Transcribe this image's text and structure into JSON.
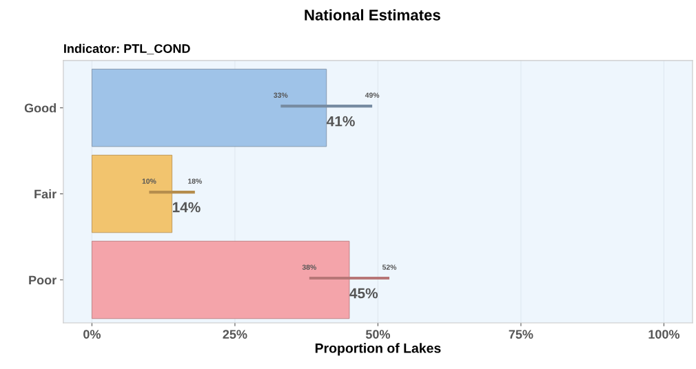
{
  "chart_data": {
    "type": "bar",
    "orientation": "horizontal",
    "title": "National Estimates",
    "subtitle": "Indicator: PTL_COND",
    "xlabel": "Proportion of Lakes",
    "categories": [
      "Good",
      "Fair",
      "Poor"
    ],
    "values": [
      41,
      14,
      45
    ],
    "colors": [
      "#9fc3e8",
      "#f2c46e",
      "#f4a4aa"
    ],
    "errors": [
      [
        33,
        49
      ],
      [
        10,
        18
      ],
      [
        38,
        52
      ]
    ],
    "value_labels": [
      "41%",
      "14%",
      "45%"
    ],
    "annotations": [
      "33%",
      "49%",
      "10%",
      "18%",
      "38%",
      "52%"
    ],
    "xlim": [
      -5,
      105
    ],
    "xticks": [
      {
        "value": 0,
        "label": "0%"
      },
      {
        "value": 25,
        "label": "25%"
      },
      {
        "value": 50,
        "label": "50%"
      },
      {
        "value": 75,
        "label": "75%"
      },
      {
        "value": 100,
        "label": "100%"
      }
    ],
    "grid": "x"
  }
}
